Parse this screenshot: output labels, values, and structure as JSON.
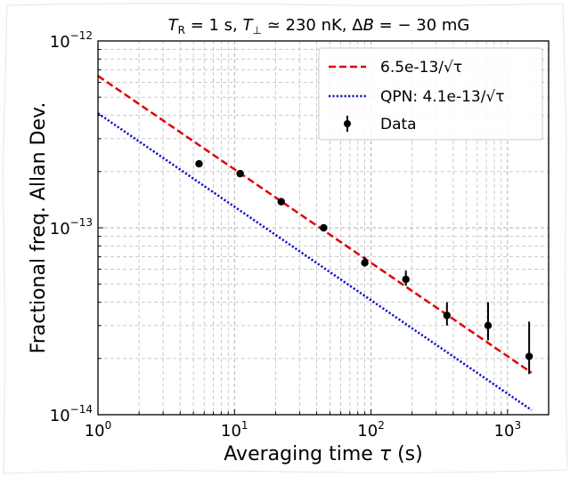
{
  "chart_data": {
    "type": "scatter",
    "title_parts": {
      "t_r": "T",
      "t_r_sub": "R",
      "t_r_val": " = 1 s, ",
      "t_perp": "T",
      "t_perp_sub": "⊥",
      "t_perp_val": " ≃ 230 nK, ",
      "delta_b": "Δ",
      "delta_b_var": "B",
      "delta_b_val": " = − 30 mG"
    },
    "xlabel_text": "Averaging time ",
    "xlabel_symbol": "τ",
    "xlabel_unit": " (s)",
    "ylabel": "Fractional freq. Allan Dev.",
    "x_scale": "log",
    "y_scale": "log",
    "xlim": [
      1,
      2000
    ],
    "ylim": [
      1e-14,
      1e-12
    ],
    "grid": true,
    "legend_position": "top-right",
    "x_ticks": [
      {
        "base": "10",
        "exp": "0"
      },
      {
        "base": "10",
        "exp": "1"
      },
      {
        "base": "10",
        "exp": "2"
      },
      {
        "base": "10",
        "exp": "3"
      }
    ],
    "y_ticks": [
      {
        "base": "10",
        "exp": "−14"
      },
      {
        "base": "10",
        "exp": "−13"
      },
      {
        "base": "10",
        "exp": "−12"
      }
    ],
    "series": [
      {
        "name": "6.5e-13/√τ",
        "kind": "fit",
        "coefficient": 6.5e-13,
        "color": "#e00000",
        "style": "dashed"
      },
      {
        "name": "QPN: 4.1e-13/√τ",
        "kind": "fit",
        "coefficient": 4.1e-13,
        "color": "#1010cc",
        "style": "dotted"
      },
      {
        "name": "Data",
        "kind": "errorbar",
        "color": "#000000",
        "x": [
          5.5,
          11,
          22,
          45,
          90,
          180,
          360,
          720,
          1440
        ],
        "y": [
          2.2e-13,
          1.95e-13,
          1.38e-13,
          1e-13,
          6.5e-14,
          5.3e-14,
          3.4e-14,
          3e-14,
          2.05e-14
        ],
        "err_low": [
          0,
          0,
          0,
          0,
          3e-15,
          4e-15,
          4e-15,
          5e-15,
          4e-15
        ],
        "err_high": [
          0,
          0,
          0,
          3e-15,
          5e-15,
          6e-15,
          6e-15,
          1e-14,
          1.1e-14
        ]
      }
    ]
  }
}
